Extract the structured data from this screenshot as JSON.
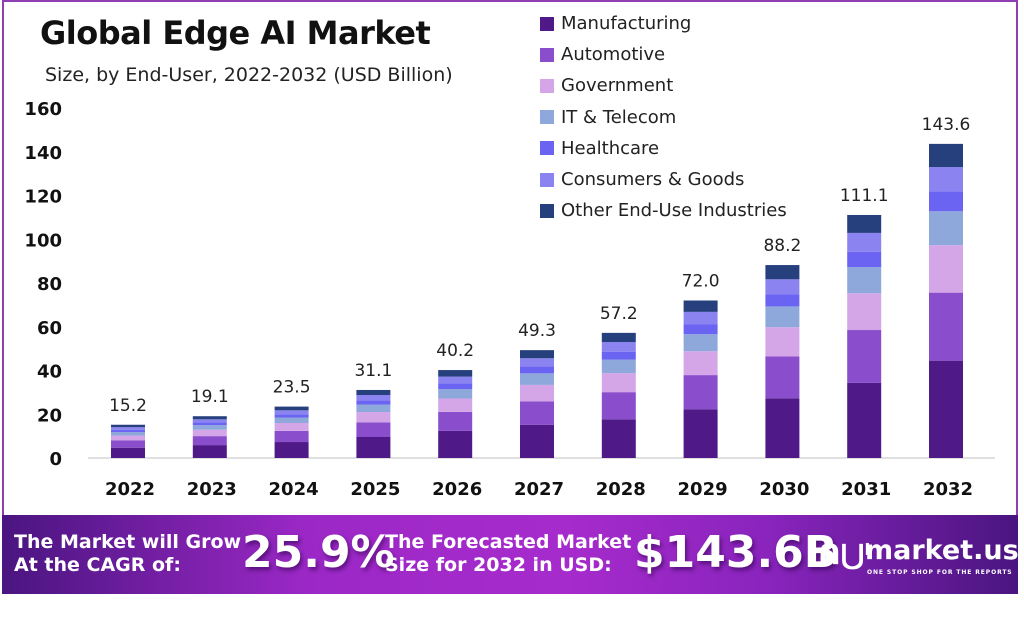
{
  "header": {
    "title": "Global Edge AI Market",
    "subtitle": "Size, by End-User, 2022-2032 (USD Billion)"
  },
  "chart_data": {
    "type": "bar",
    "stacked": true,
    "title": "Global Edge AI Market",
    "subtitle": "Size, by End-User, 2022-2032 (USD Billion)",
    "xlabel": "",
    "ylabel": "",
    "ylim": [
      0,
      160
    ],
    "yticks": [
      0,
      20,
      40,
      60,
      80,
      100,
      120,
      140,
      160
    ],
    "grid": false,
    "legend_position": "top-right",
    "categories": [
      "2022",
      "2023",
      "2024",
      "2025",
      "2026",
      "2027",
      "2028",
      "2029",
      "2030",
      "2031",
      "2032"
    ],
    "totals": [
      15.2,
      19.1,
      23.5,
      31.1,
      40.2,
      49.3,
      57.2,
      72.0,
      88.2,
      111.1,
      143.6
    ],
    "total_labels": [
      "15.2",
      "19.1",
      "23.5",
      "31.1",
      "40.2",
      "49.3",
      "57.2",
      "72.0",
      "88.2",
      "111.1",
      "143.6"
    ],
    "series": [
      {
        "name": "Manufacturing",
        "color": "#4f1a87",
        "values": [
          4.7,
          5.9,
          7.3,
          9.6,
          12.4,
          15.2,
          17.7,
          22.3,
          27.3,
          34.4,
          44.5
        ]
      },
      {
        "name": "Automotive",
        "color": "#8a4dcb",
        "values": [
          3.3,
          4.1,
          5.1,
          6.7,
          8.7,
          10.7,
          12.4,
          15.6,
          19.1,
          24.1,
          31.1
        ]
      },
      {
        "name": "Government",
        "color": "#d4a6e8",
        "values": [
          2.3,
          2.9,
          3.6,
          4.7,
          6.1,
          7.5,
          8.7,
          10.9,
          13.4,
          16.8,
          21.7
        ]
      },
      {
        "name": "IT & Telecom",
        "color": "#8fa8dc",
        "values": [
          1.6,
          2.1,
          2.5,
          3.4,
          4.3,
          5.3,
          6.2,
          7.8,
          9.5,
          12.0,
          15.5
        ]
      },
      {
        "name": "Healthcare",
        "color": "#6b63f2",
        "values": [
          1.0,
          1.2,
          1.5,
          2.0,
          2.6,
          3.1,
          3.6,
          4.6,
          5.6,
          7.0,
          9.1
        ]
      },
      {
        "name": "Consumers & Goods",
        "color": "#8b84f0",
        "values": [
          1.2,
          1.5,
          1.8,
          2.4,
          3.1,
          3.8,
          4.4,
          5.6,
          6.8,
          8.6,
          11.1
        ]
      },
      {
        "name": "Other End-Use Industries",
        "color": "#263f7d",
        "values": [
          1.1,
          1.4,
          1.7,
          2.3,
          3.0,
          3.7,
          4.2,
          5.2,
          6.5,
          8.2,
          10.6
        ]
      }
    ]
  },
  "banner": {
    "cagr_label_line1": "The Market will Grow",
    "cagr_label_line2": "At the CAGR of:",
    "cagr_value": "25.9%",
    "forecast_label_line1": "The Forecasted Market",
    "forecast_label_line2": "Size for 2032 in USD:",
    "forecast_value": "$143.6B",
    "logo_mark": "ᑎ⋃ˡ",
    "brand_name": "market.us",
    "brand_tagline": "ONE STOP SHOP FOR THE REPORTS"
  },
  "colors": {
    "frame": "#8e3fb3",
    "banner_dark": "#4a1580",
    "banner_light": "#a72bcc"
  }
}
